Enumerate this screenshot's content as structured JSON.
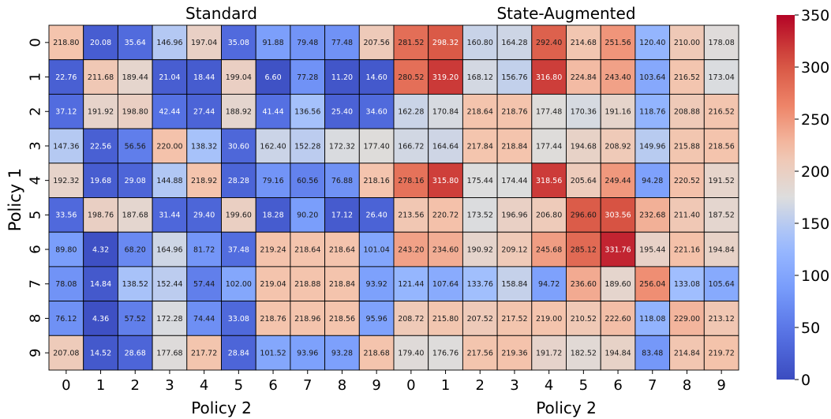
{
  "chart_data": {
    "type": "heatmap",
    "ylabel": "Policy 1",
    "colorbar": {
      "min": 0,
      "max": 350,
      "ticks": [
        "0",
        "50",
        "100",
        "150",
        "200",
        "250",
        "300",
        "350"
      ],
      "colormap": "coolwarm",
      "low_color": "#3b4cc0",
      "mid_color": "#dddddd",
      "high_color": "#b40426"
    },
    "panels": [
      {
        "title": "Standard",
        "xlabel": "Policy 2",
        "x_ticks": [
          "0",
          "1",
          "2",
          "3",
          "4",
          "5",
          "6",
          "7",
          "8",
          "9"
        ],
        "y_ticks": [
          "0",
          "1",
          "2",
          "3",
          "4",
          "5",
          "6",
          "7",
          "8",
          "9"
        ],
        "values": [
          [
            "218.80",
            "20.08",
            "35.64",
            "146.96",
            "197.04",
            "35.08",
            "91.88",
            "79.48",
            "77.48",
            "207.56"
          ],
          [
            "22.76",
            "211.68",
            "189.44",
            "21.04",
            "18.44",
            "199.04",
            "6.60",
            "77.28",
            "11.20",
            "14.60"
          ],
          [
            "37.12",
            "191.92",
            "198.80",
            "42.44",
            "27.44",
            "188.92",
            "41.44",
            "136.56",
            "25.40",
            "34.60"
          ],
          [
            "147.36",
            "22.56",
            "56.56",
            "220.00",
            "138.32",
            "30.60",
            "162.40",
            "152.28",
            "172.32",
            "177.40"
          ],
          [
            "192.32",
            "19.68",
            "29.08",
            "144.88",
            "218.92",
            "28.28",
            "79.16",
            "60.56",
            "76.88",
            "218.16"
          ],
          [
            "33.56",
            "198.76",
            "187.68",
            "31.44",
            "29.40",
            "199.60",
            "18.28",
            "90.20",
            "17.12",
            "26.40"
          ],
          [
            "89.80",
            "4.32",
            "68.20",
            "164.96",
            "81.72",
            "37.48",
            "219.24",
            "218.64",
            "218.64",
            "101.04"
          ],
          [
            "78.08",
            "14.84",
            "138.52",
            "152.44",
            "57.44",
            "102.00",
            "219.04",
            "218.88",
            "218.84",
            "93.92"
          ],
          [
            "76.12",
            "4.36",
            "57.52",
            "172.28",
            "74.44",
            "33.08",
            "218.76",
            "218.96",
            "218.56",
            "95.96"
          ],
          [
            "207.08",
            "14.52",
            "28.68",
            "177.68",
            "217.72",
            "28.84",
            "101.52",
            "93.96",
            "93.28",
            "218.68"
          ]
        ]
      },
      {
        "title": "State-Augmented",
        "xlabel": "Policy 2",
        "x_ticks": [
          "0",
          "1",
          "2",
          "3",
          "4",
          "5",
          "6",
          "7",
          "8",
          "9"
        ],
        "y_ticks": [],
        "values": [
          [
            "281.52",
            "298.32",
            "160.80",
            "164.28",
            "292.40",
            "214.68",
            "251.56",
            "120.40",
            "210.00",
            "178.08"
          ],
          [
            "280.52",
            "319.20",
            "168.12",
            "156.76",
            "316.80",
            "224.84",
            "243.40",
            "103.64",
            "216.52",
            "173.04"
          ],
          [
            "162.28",
            "170.84",
            "218.64",
            "218.76",
            "177.48",
            "170.36",
            "191.16",
            "118.76",
            "208.88",
            "216.52"
          ],
          [
            "166.72",
            "164.64",
            "217.84",
            "218.84",
            "177.44",
            "194.68",
            "208.92",
            "149.96",
            "215.88",
            "218.56"
          ],
          [
            "278.16",
            "315.80",
            "175.44",
            "174.44",
            "318.56",
            "205.64",
            "249.44",
            "94.28",
            "220.52",
            "191.52"
          ],
          [
            "213.56",
            "220.72",
            "173.52",
            "196.96",
            "206.80",
            "296.60",
            "303.56",
            "232.68",
            "211.40",
            "187.52"
          ],
          [
            "243.20",
            "234.60",
            "190.92",
            "209.12",
            "245.68",
            "285.12",
            "331.76",
            "195.44",
            "221.16",
            "194.84"
          ],
          [
            "121.44",
            "107.64",
            "133.76",
            "158.84",
            "94.72",
            "236.60",
            "189.60",
            "256.04",
            "133.08",
            "105.64"
          ],
          [
            "208.72",
            "215.80",
            "207.52",
            "217.52",
            "219.00",
            "210.52",
            "222.60",
            "118.08",
            "229.00",
            "213.12"
          ],
          [
            "179.40",
            "176.76",
            "217.56",
            "219.36",
            "191.72",
            "182.52",
            "194.84",
            "83.48",
            "214.84",
            "219.72"
          ]
        ]
      }
    ]
  }
}
